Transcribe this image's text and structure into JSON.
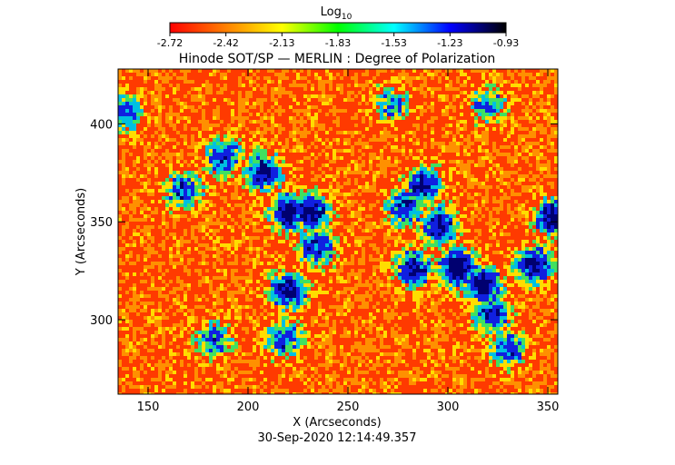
{
  "chart_data": {
    "type": "heatmap",
    "title": "Hinode SOT/SP — MERLIN : Degree of Polarization",
    "xlabel": "X (Arcseconds)",
    "ylabel": "Y (Arcseconds)",
    "xlim": [
      135,
      355
    ],
    "ylim": [
      262,
      428
    ],
    "xticks": [
      150,
      200,
      250,
      300,
      350
    ],
    "yticks": [
      300,
      350,
      400
    ],
    "timestamp": "30-Sep-2020 12:14:49.357",
    "colorbar": {
      "label_base": "Log",
      "label_sub": "10",
      "range": [
        -2.72,
        -0.93
      ],
      "ticks": [
        "-2.72",
        "-2.42",
        "-2.13",
        "-1.83",
        "-1.53",
        "-1.23",
        "-0.93"
      ],
      "colors": [
        "#ff0000",
        "#ff8000",
        "#ffff00",
        "#00ff00",
        "#00ffff",
        "#0000ff",
        "#000000"
      ]
    },
    "map_colors": {
      "background": "#ff3a00",
      "mid": "#ff9000",
      "yellow": "#ffdd00",
      "green": "#40e060",
      "cyan": "#00c0e0",
      "blue": "#1020e0",
      "dark": "#000070"
    },
    "high_polarization_regions": [
      {
        "x": 208,
        "y": 375,
        "value": -1.35
      },
      {
        "x": 220,
        "y": 355,
        "value": -1.25
      },
      {
        "x": 232,
        "y": 355,
        "value": -1.3
      },
      {
        "x": 168,
        "y": 366,
        "value": -1.6
      },
      {
        "x": 188,
        "y": 383,
        "value": -1.55
      },
      {
        "x": 220,
        "y": 315,
        "value": -1.35
      },
      {
        "x": 218,
        "y": 290,
        "value": -1.6
      },
      {
        "x": 235,
        "y": 337,
        "value": -1.55
      },
      {
        "x": 288,
        "y": 369,
        "value": -1.4
      },
      {
        "x": 296,
        "y": 348,
        "value": -1.35
      },
      {
        "x": 279,
        "y": 357,
        "value": -1.5
      },
      {
        "x": 305,
        "y": 326,
        "value": -1.1
      },
      {
        "x": 318,
        "y": 318,
        "value": -1.2
      },
      {
        "x": 343,
        "y": 328,
        "value": -1.3
      },
      {
        "x": 283,
        "y": 326,
        "value": -1.4
      },
      {
        "x": 322,
        "y": 303,
        "value": -1.5
      },
      {
        "x": 353,
        "y": 352,
        "value": -1.25
      },
      {
        "x": 330,
        "y": 285,
        "value": -1.6
      },
      {
        "x": 183,
        "y": 290,
        "value": -1.7
      },
      {
        "x": 138,
        "y": 406,
        "value": -1.6
      },
      {
        "x": 320,
        "y": 410,
        "value": -1.8
      },
      {
        "x": 272,
        "y": 410,
        "value": -1.85
      }
    ]
  }
}
